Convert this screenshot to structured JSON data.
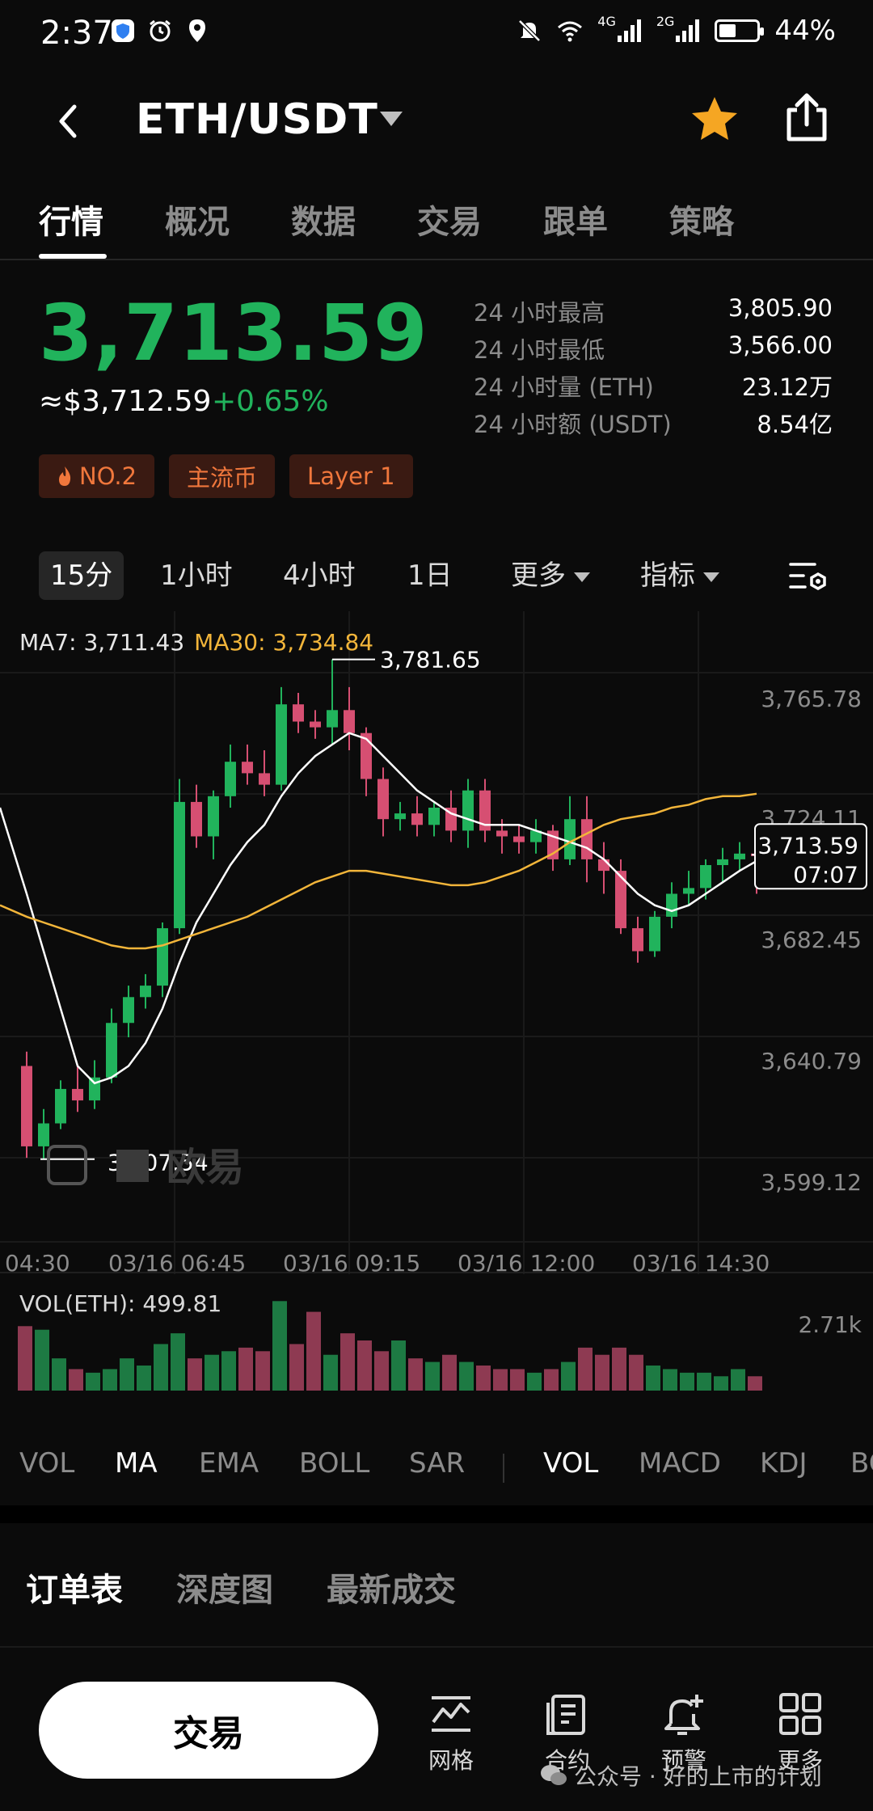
{
  "status_bar": {
    "time": "2:37",
    "network_4g": "4G",
    "network_2g": "2G",
    "battery": "44%",
    "battery_level": 0.44
  },
  "header": {
    "title": "ETH/USDT"
  },
  "tabs": [
    "行情",
    "概况",
    "数据",
    "交易",
    "跟单",
    "策略"
  ],
  "price": {
    "last": "3,713.59",
    "usd": "≈$3,712.59",
    "change": "+0.65%"
  },
  "stats": [
    {
      "label": "24 小时最高",
      "value": "3,805.90"
    },
    {
      "label": "24 小时最低",
      "value": "3,566.00"
    },
    {
      "label": "24 小时量 (ETH)",
      "value": "23.12万"
    },
    {
      "label": "24 小时额 (USDT)",
      "value": "8.54亿"
    }
  ],
  "badges": [
    "NO.2",
    "主流币",
    "Layer 1"
  ],
  "intervals": [
    "15分",
    "1小时",
    "4小时",
    "1日"
  ],
  "more_label": "更多",
  "indicators_label": "指标",
  "ma_legend": {
    "ma7": "MA7: 3,711.43",
    "ma30": "MA30: 3,734.84"
  },
  "chart_data": {
    "type": "candlestick",
    "y_ticks": [
      "3,765.78",
      "3,724.11",
      "3,682.45",
      "3,640.79",
      "3,599.12"
    ],
    "x_ticks": [
      "04:30",
      "03/16 06:45",
      "03/16 09:15",
      "03/16 12:00",
      "03/16 14:30"
    ],
    "high_label": "3,781.65",
    "low_label": "3,607.54",
    "current_price_label": "3,713.59",
    "countdown": "07:07",
    "watermark_text": "欧易",
    "ylim": [
      3590,
      3790
    ],
    "candles": [
      {
        "o": 3640,
        "h": 3645,
        "c": 3612,
        "l": 3608
      },
      {
        "o": 3612,
        "h": 3625,
        "c": 3620,
        "l": 3607.54
      },
      {
        "o": 3620,
        "h": 3635,
        "c": 3632,
        "l": 3618
      },
      {
        "o": 3632,
        "h": 3640,
        "c": 3628,
        "l": 3624
      },
      {
        "o": 3628,
        "h": 3642,
        "c": 3636,
        "l": 3625
      },
      {
        "o": 3636,
        "h": 3660,
        "c": 3655,
        "l": 3634
      },
      {
        "o": 3655,
        "h": 3668,
        "c": 3664,
        "l": 3650
      },
      {
        "o": 3664,
        "h": 3672,
        "c": 3668,
        "l": 3660
      },
      {
        "o": 3668,
        "h": 3690,
        "c": 3688,
        "l": 3664
      },
      {
        "o": 3688,
        "h": 3740,
        "c": 3732,
        "l": 3686
      },
      {
        "o": 3732,
        "h": 3738,
        "c": 3720,
        "l": 3716
      },
      {
        "o": 3720,
        "h": 3736,
        "c": 3734,
        "l": 3712
      },
      {
        "o": 3734,
        "h": 3752,
        "c": 3746,
        "l": 3730
      },
      {
        "o": 3746,
        "h": 3752,
        "c": 3742,
        "l": 3738
      },
      {
        "o": 3742,
        "h": 3750,
        "c": 3738,
        "l": 3734
      },
      {
        "o": 3738,
        "h": 3772,
        "c": 3766,
        "l": 3736
      },
      {
        "o": 3766,
        "h": 3770,
        "c": 3760,
        "l": 3756
      },
      {
        "o": 3760,
        "h": 3764,
        "c": 3758,
        "l": 3754
      },
      {
        "o": 3758,
        "h": 3781.65,
        "c": 3764,
        "l": 3752
      },
      {
        "o": 3764,
        "h": 3772,
        "c": 3756,
        "l": 3750
      },
      {
        "o": 3756,
        "h": 3758,
        "c": 3740,
        "l": 3734
      },
      {
        "o": 3740,
        "h": 3744,
        "c": 3726,
        "l": 3720
      },
      {
        "o": 3726,
        "h": 3732,
        "c": 3728,
        "l": 3722
      },
      {
        "o": 3728,
        "h": 3734,
        "c": 3724,
        "l": 3720
      },
      {
        "o": 3724,
        "h": 3732,
        "c": 3730,
        "l": 3720
      },
      {
        "o": 3730,
        "h": 3736,
        "c": 3722,
        "l": 3718
      },
      {
        "o": 3722,
        "h": 3740,
        "c": 3736,
        "l": 3716
      },
      {
        "o": 3736,
        "h": 3740,
        "c": 3722,
        "l": 3718
      },
      {
        "o": 3722,
        "h": 3726,
        "c": 3720,
        "l": 3714
      },
      {
        "o": 3720,
        "h": 3724,
        "c": 3718,
        "l": 3714
      },
      {
        "o": 3718,
        "h": 3726,
        "c": 3722,
        "l": 3714
      },
      {
        "o": 3722,
        "h": 3724,
        "c": 3712,
        "l": 3708
      },
      {
        "o": 3712,
        "h": 3734,
        "c": 3726,
        "l": 3710
      },
      {
        "o": 3726,
        "h": 3734,
        "c": 3712,
        "l": 3704
      },
      {
        "o": 3712,
        "h": 3718,
        "c": 3708,
        "l": 3700
      },
      {
        "o": 3708,
        "h": 3712,
        "c": 3688,
        "l": 3686
      },
      {
        "o": 3688,
        "h": 3692,
        "c": 3680,
        "l": 3676
      },
      {
        "o": 3680,
        "h": 3694,
        "c": 3692,
        "l": 3678
      },
      {
        "o": 3692,
        "h": 3704,
        "c": 3700,
        "l": 3688
      },
      {
        "o": 3700,
        "h": 3708,
        "c": 3702,
        "l": 3696
      },
      {
        "o": 3702,
        "h": 3712,
        "c": 3710,
        "l": 3698
      },
      {
        "o": 3710,
        "h": 3716,
        "c": 3712,
        "l": 3704
      },
      {
        "o": 3712,
        "h": 3718,
        "c": 3714,
        "l": 3708
      },
      {
        "o": 3714,
        "h": 3718,
        "c": 3713.59,
        "l": 3700
      }
    ],
    "ma7": [
      3700,
      3680,
      3660,
      3640,
      3634,
      3636,
      3640,
      3648,
      3660,
      3676,
      3690,
      3700,
      3710,
      3718,
      3724,
      3734,
      3742,
      3748,
      3752,
      3756,
      3754,
      3748,
      3742,
      3736,
      3732,
      3728,
      3726,
      3724,
      3724,
      3724,
      3722,
      3720,
      3718,
      3716,
      3712,
      3706,
      3700,
      3696,
      3694,
      3696,
      3700,
      3704,
      3708,
      3711.43
    ],
    "ma30": [
      3692,
      3690,
      3688,
      3686,
      3684,
      3682,
      3681,
      3681,
      3682,
      3684,
      3686,
      3688,
      3690,
      3692,
      3695,
      3698,
      3701,
      3704,
      3706,
      3708,
      3708,
      3707,
      3706,
      3705,
      3704,
      3703,
      3703,
      3704,
      3706,
      3708,
      3711,
      3714,
      3718,
      3721,
      3724,
      3726,
      3727,
      3728,
      3730,
      3731,
      3733,
      3734,
      3734,
      3734.84
    ],
    "volume_label": "VOL(ETH): 499.81",
    "volume_axis_label": "2.71k",
    "volumes": [
      1.8,
      1.7,
      0.9,
      0.6,
      0.5,
      0.6,
      0.9,
      0.7,
      1.3,
      1.6,
      0.9,
      1.0,
      1.1,
      1.2,
      1.1,
      2.5,
      1.3,
      2.2,
      1.0,
      1.6,
      1.4,
      1.1,
      1.4,
      0.9,
      0.8,
      1.0,
      0.8,
      0.7,
      0.6,
      0.6,
      0.5,
      0.6,
      0.8,
      1.2,
      1.0,
      1.2,
      1.0,
      0.7,
      0.6,
      0.5,
      0.5,
      0.4,
      0.6,
      0.4
    ]
  },
  "indicator_tabs": {
    "main": [
      "VOL",
      "MA",
      "EMA",
      "BOLL",
      "SAR"
    ],
    "sub": [
      "VOL",
      "MACD",
      "KDJ",
      "BO"
    ]
  },
  "order_tabs": [
    "订单表",
    "深度图",
    "最新成交"
  ],
  "bottom_bar": {
    "trade": "交易",
    "grid": "网格",
    "contract": "合约",
    "alert": "预警",
    "more": "更多"
  },
  "watermark": "公众号 · 好的上市的计划",
  "colors": {
    "up": "#21b35c",
    "down": "#d64f72",
    "ma30": "#f2b53a",
    "ma7": "#ffffff"
  }
}
